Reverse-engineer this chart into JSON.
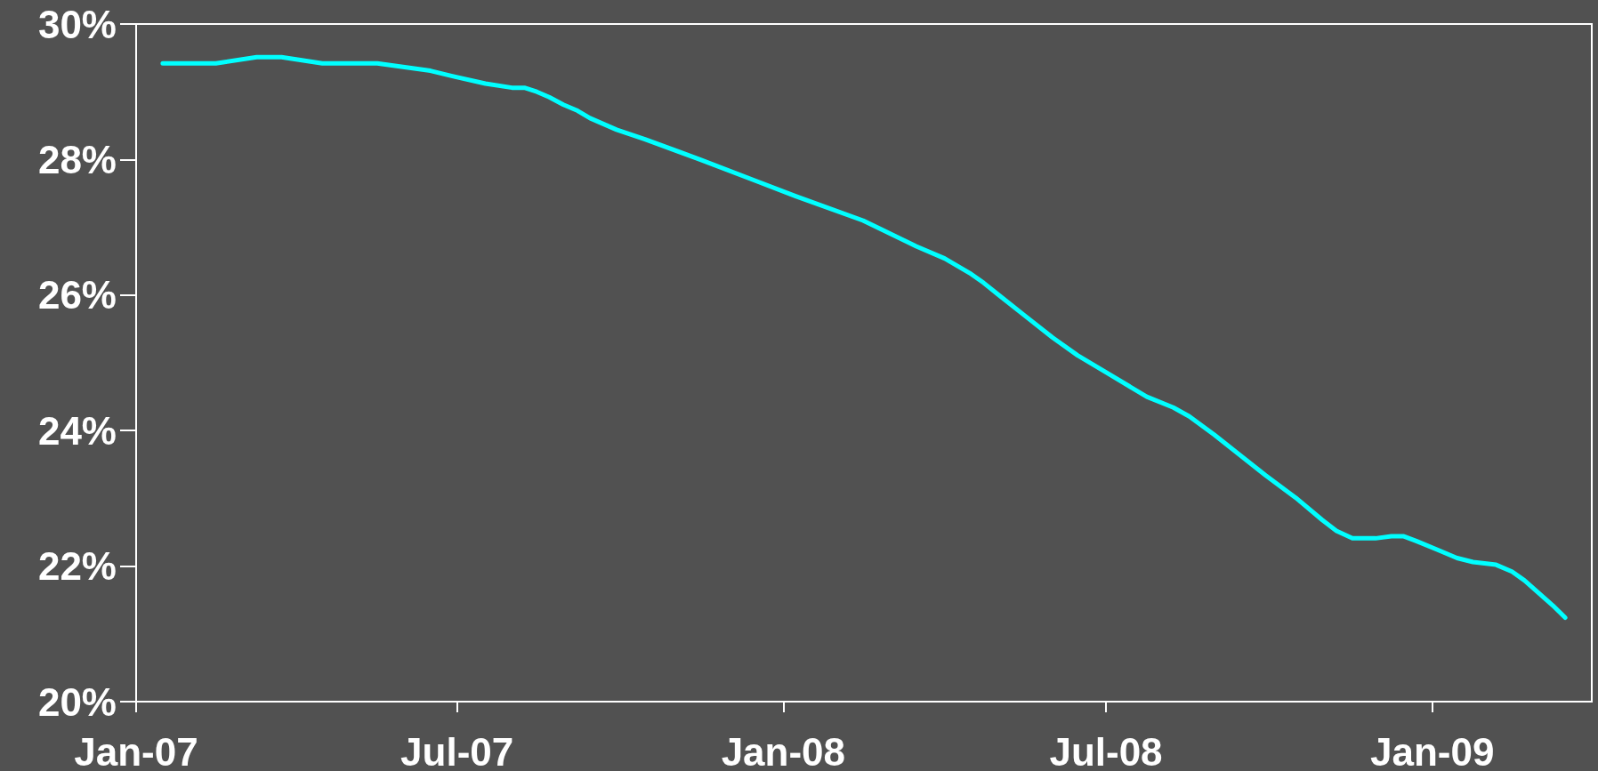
{
  "chart_data": {
    "type": "line",
    "x": [
      "2007-01-16",
      "2007-02-15",
      "2007-03-10",
      "2007-03-24",
      "2007-04-16",
      "2007-05-17",
      "2007-06-16",
      "2007-06-30",
      "2007-07-17",
      "2007-08-01",
      "2007-08-08",
      "2007-08-15",
      "2007-08-22",
      "2007-08-30",
      "2007-09-07",
      "2007-09-14",
      "2007-09-29",
      "2007-10-15",
      "2007-11-15",
      "2007-12-15",
      "2008-01-08",
      "2008-02-15",
      "2008-03-16",
      "2008-04-01",
      "2008-04-16",
      "2008-04-23",
      "2008-05-02",
      "2008-05-16",
      "2008-06-01",
      "2008-06-15",
      "2008-07-01",
      "2008-07-24",
      "2008-08-08",
      "2008-08-17",
      "2008-08-31",
      "2008-09-29",
      "2008-10-16",
      "2008-10-31",
      "2008-11-08",
      "2008-11-17",
      "2008-11-30",
      "2008-12-09",
      "2008-12-16",
      "2008-12-23",
      "2009-01-04",
      "2009-01-15",
      "2009-01-24",
      "2009-02-06",
      "2009-02-15",
      "2009-02-22",
      "2009-03-10",
      "2009-03-17"
    ],
    "series": [
      {
        "color": "#00ffff",
        "values": [
          29.42,
          29.42,
          29.51,
          29.51,
          29.42,
          29.42,
          29.31,
          29.22,
          29.12,
          29.06,
          29.06,
          29.0,
          28.92,
          28.81,
          28.72,
          28.61,
          28.44,
          28.3,
          28.0,
          27.7,
          27.46,
          27.1,
          26.72,
          26.54,
          26.31,
          26.18,
          25.99,
          25.7,
          25.37,
          25.11,
          24.86,
          24.5,
          24.34,
          24.21,
          23.94,
          23.34,
          23.01,
          22.68,
          22.52,
          22.41,
          22.41,
          22.44,
          22.44,
          22.37,
          22.24,
          22.12,
          22.06,
          22.02,
          21.92,
          21.79,
          21.42,
          21.24
        ]
      }
    ],
    "xlim": [
      "2007-01-01",
      "2009-04-01"
    ],
    "xticks": [
      {
        "value": "2007-01-01",
        "label": "Jan-07"
      },
      {
        "value": "2007-07-01",
        "label": "Jul-07"
      },
      {
        "value": "2008-01-01",
        "label": "Jan-08"
      },
      {
        "value": "2008-07-01",
        "label": "Jul-08"
      },
      {
        "value": "2009-01-01",
        "label": "Jan-09"
      }
    ],
    "ylim": [
      20,
      30
    ],
    "yticks": [
      {
        "value": 20,
        "label": "20%"
      },
      {
        "value": 22,
        "label": "22%"
      },
      {
        "value": 24,
        "label": "24%"
      },
      {
        "value": 26,
        "label": "26%"
      },
      {
        "value": 28,
        "label": "28%"
      },
      {
        "value": 30,
        "label": "30%"
      }
    ],
    "grid": false,
    "marker": "none",
    "line_style": "solid"
  }
}
